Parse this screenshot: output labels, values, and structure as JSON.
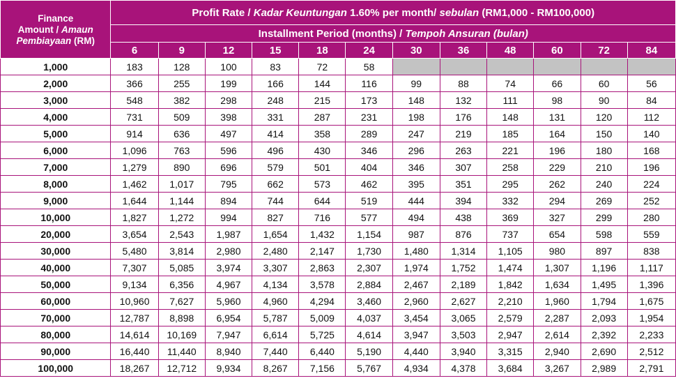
{
  "header": {
    "corner_line1": "Finance",
    "corner_line2_plain": "Amount / ",
    "corner_line2_italic": "Amaun",
    "corner_line3_italic": "Pembiayaan",
    "corner_line3_plain": " (RM)",
    "rate_plain1": "Profit Rate / ",
    "rate_italic1": "Kadar Keuntungan",
    "rate_plain2": " 1.60% per month/ ",
    "rate_italic2": "sebulan",
    "rate_plain3": " (RM1,000 - RM100,000)",
    "period_plain": "Installment Period (months) / ",
    "period_italic": "Tempoh Ansuran (bulan)"
  },
  "periods": [
    "6",
    "9",
    "12",
    "15",
    "18",
    "24",
    "30",
    "36",
    "48",
    "60",
    "72",
    "84"
  ],
  "rows": [
    {
      "amount": "1,000",
      "values": [
        "183",
        "128",
        "100",
        "83",
        "72",
        "58",
        "",
        "",
        "",
        "",
        "",
        ""
      ]
    },
    {
      "amount": "2,000",
      "values": [
        "366",
        "255",
        "199",
        "166",
        "144",
        "116",
        "99",
        "88",
        "74",
        "66",
        "60",
        "56"
      ]
    },
    {
      "amount": "3,000",
      "values": [
        "548",
        "382",
        "298",
        "248",
        "215",
        "173",
        "148",
        "132",
        "111",
        "98",
        "90",
        "84"
      ]
    },
    {
      "amount": "4,000",
      "values": [
        "731",
        "509",
        "398",
        "331",
        "287",
        "231",
        "198",
        "176",
        "148",
        "131",
        "120",
        "112"
      ]
    },
    {
      "amount": "5,000",
      "values": [
        "914",
        "636",
        "497",
        "414",
        "358",
        "289",
        "247",
        "219",
        "185",
        "164",
        "150",
        "140"
      ]
    },
    {
      "amount": "6,000",
      "values": [
        "1,096",
        "763",
        "596",
        "496",
        "430",
        "346",
        "296",
        "263",
        "221",
        "196",
        "180",
        "168"
      ]
    },
    {
      "amount": "7,000",
      "values": [
        "1,279",
        "890",
        "696",
        "579",
        "501",
        "404",
        "346",
        "307",
        "258",
        "229",
        "210",
        "196"
      ]
    },
    {
      "amount": "8,000",
      "values": [
        "1,462",
        "1,017",
        "795",
        "662",
        "573",
        "462",
        "395",
        "351",
        "295",
        "262",
        "240",
        "224"
      ]
    },
    {
      "amount": "9,000",
      "values": [
        "1,644",
        "1,144",
        "894",
        "744",
        "644",
        "519",
        "444",
        "394",
        "332",
        "294",
        "269",
        "252"
      ]
    },
    {
      "amount": "10,000",
      "values": [
        "1,827",
        "1,272",
        "994",
        "827",
        "716",
        "577",
        "494",
        "438",
        "369",
        "327",
        "299",
        "280"
      ]
    },
    {
      "amount": "20,000",
      "values": [
        "3,654",
        "2,543",
        "1,987",
        "1,654",
        "1,432",
        "1,154",
        "987",
        "876",
        "737",
        "654",
        "598",
        "559"
      ]
    },
    {
      "amount": "30,000",
      "values": [
        "5,480",
        "3,814",
        "2,980",
        "2,480",
        "2,147",
        "1,730",
        "1,480",
        "1,314",
        "1,105",
        "980",
        "897",
        "838"
      ]
    },
    {
      "amount": "40,000",
      "values": [
        "7,307",
        "5,085",
        "3,974",
        "3,307",
        "2,863",
        "2,307",
        "1,974",
        "1,752",
        "1,474",
        "1,307",
        "1,196",
        "1,117"
      ]
    },
    {
      "amount": "50,000",
      "values": [
        "9,134",
        "6,356",
        "4,967",
        "4,134",
        "3,578",
        "2,884",
        "2,467",
        "2,189",
        "1,842",
        "1,634",
        "1,495",
        "1,396"
      ]
    },
    {
      "amount": "60,000",
      "values": [
        "10,960",
        "7,627",
        "5,960",
        "4,960",
        "4,294",
        "3,460",
        "2,960",
        "2,627",
        "2,210",
        "1,960",
        "1,794",
        "1,675"
      ]
    },
    {
      "amount": "70,000",
      "values": [
        "12,787",
        "8,898",
        "6,954",
        "5,787",
        "5,009",
        "4,037",
        "3,454",
        "3,065",
        "2,579",
        "2,287",
        "2,093",
        "1,954"
      ]
    },
    {
      "amount": "80,000",
      "values": [
        "14,614",
        "10,169",
        "7,947",
        "6,614",
        "5,725",
        "4,614",
        "3,947",
        "3,503",
        "2,947",
        "2,614",
        "2,392",
        "2,233"
      ]
    },
    {
      "amount": "90,000",
      "values": [
        "16,440",
        "11,440",
        "8,940",
        "7,440",
        "6,440",
        "5,190",
        "4,440",
        "3,940",
        "3,315",
        "2,940",
        "2,690",
        "2,512"
      ]
    },
    {
      "amount": "100,000",
      "values": [
        "18,267",
        "12,712",
        "9,934",
        "8,267",
        "7,156",
        "5,767",
        "4,934",
        "4,378",
        "3,684",
        "3,267",
        "2,989",
        "2,791"
      ]
    }
  ]
}
